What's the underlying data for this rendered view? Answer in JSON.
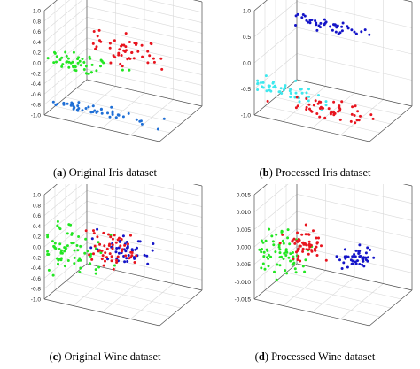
{
  "colors": {
    "red": "#e8141e",
    "green": "#22e622",
    "blue": "#1f6fd6",
    "navy": "#1414c8",
    "cyan": "#3ee8ee",
    "axis": "#555555",
    "grid": "#d9d9d9"
  },
  "chart_data": [
    {
      "panel": "a",
      "type": "scatter",
      "projection": "3d",
      "caption_letter": "a",
      "caption_text": " Original Iris dataset",
      "zlim": [
        -1.0,
        1.0
      ],
      "zticks": [
        "1.0",
        "0.8",
        "0.6",
        "0.4",
        "0.2",
        "0.0",
        "-0.2",
        "-0.4",
        "-0.6",
        "-0.8",
        "-1.0"
      ],
      "grid": true,
      "series": [
        {
          "color": "blue",
          "center": [
            0.45,
            0.0,
            -0.72
          ],
          "spread": [
            0.42,
            0.15,
            0.07
          ],
          "n": 48,
          "seed": 11
        },
        {
          "color": "green",
          "center": [
            0.25,
            0.15,
            0.0
          ],
          "spread": [
            0.28,
            0.2,
            0.2
          ],
          "n": 50,
          "seed": 12
        },
        {
          "color": "red",
          "center": [
            0.6,
            0.25,
            0.38
          ],
          "spread": [
            0.3,
            0.2,
            0.2
          ],
          "n": 50,
          "seed": 13
        }
      ]
    },
    {
      "panel": "b",
      "type": "scatter",
      "projection": "3d",
      "caption_letter": "b",
      "caption_text": " Processed Iris dataset",
      "zlim": [
        -1.0,
        1.0
      ],
      "zticks": [
        "1.0",
        "0.5",
        "0.0",
        "-0.5",
        "-1.0"
      ],
      "grid": true,
      "series": [
        {
          "color": "navy",
          "center": [
            0.55,
            0.2,
            0.88
          ],
          "spread": [
            0.32,
            0.1,
            0.06
          ],
          "n": 45,
          "seed": 21
        },
        {
          "color": "cyan",
          "center": [
            0.2,
            0.05,
            -0.45
          ],
          "spread": [
            0.3,
            0.15,
            0.12
          ],
          "n": 50,
          "seed": 22
        },
        {
          "color": "red",
          "center": [
            0.55,
            0.2,
            -0.75
          ],
          "spread": [
            0.35,
            0.15,
            0.1
          ],
          "n": 50,
          "seed": 23
        }
      ]
    },
    {
      "panel": "c",
      "type": "scatter",
      "projection": "3d",
      "caption_letter": "c",
      "caption_text": " Original Wine dataset",
      "zlim": [
        -1.0,
        1.0
      ],
      "zticks": [
        "1.0",
        "0.8",
        "0.6",
        "0.4",
        "0.2",
        "0.0",
        "-0.2",
        "-0.4",
        "-0.6",
        "-0.8",
        "-1.0"
      ],
      "grid": true,
      "series": [
        {
          "color": "green",
          "center": [
            0.15,
            0.1,
            -0.05
          ],
          "spread": [
            0.3,
            0.25,
            0.4
          ],
          "n": 70,
          "seed": 31
        },
        {
          "color": "navy",
          "center": [
            0.6,
            0.3,
            0.05
          ],
          "spread": [
            0.2,
            0.2,
            0.25
          ],
          "n": 45,
          "seed": 32
        },
        {
          "color": "red",
          "center": [
            0.5,
            0.2,
            0.05
          ],
          "spread": [
            0.18,
            0.2,
            0.22
          ],
          "n": 55,
          "seed": 33
        }
      ]
    },
    {
      "panel": "d",
      "type": "scatter",
      "projection": "3d",
      "caption_letter": "d",
      "caption_text": " Processed Wine dataset",
      "zlim": [
        -0.015,
        0.015
      ],
      "zticks": [
        "0.015",
        "0.010",
        "0.005",
        "0.000",
        "-0.005",
        "-0.010",
        "-0.015"
      ],
      "grid": true,
      "series": [
        {
          "color": "green",
          "center": [
            0.2,
            0.1,
            -0.1
          ],
          "spread": [
            0.22,
            0.2,
            0.35
          ],
          "n": 70,
          "seed": 41
        },
        {
          "color": "red",
          "center": [
            0.38,
            0.15,
            0.12
          ],
          "spread": [
            0.15,
            0.15,
            0.25
          ],
          "n": 60,
          "seed": 42
        },
        {
          "color": "navy",
          "center": [
            0.82,
            0.2,
            0.05
          ],
          "spread": [
            0.14,
            0.15,
            0.18
          ],
          "n": 45,
          "seed": 43
        }
      ]
    }
  ]
}
